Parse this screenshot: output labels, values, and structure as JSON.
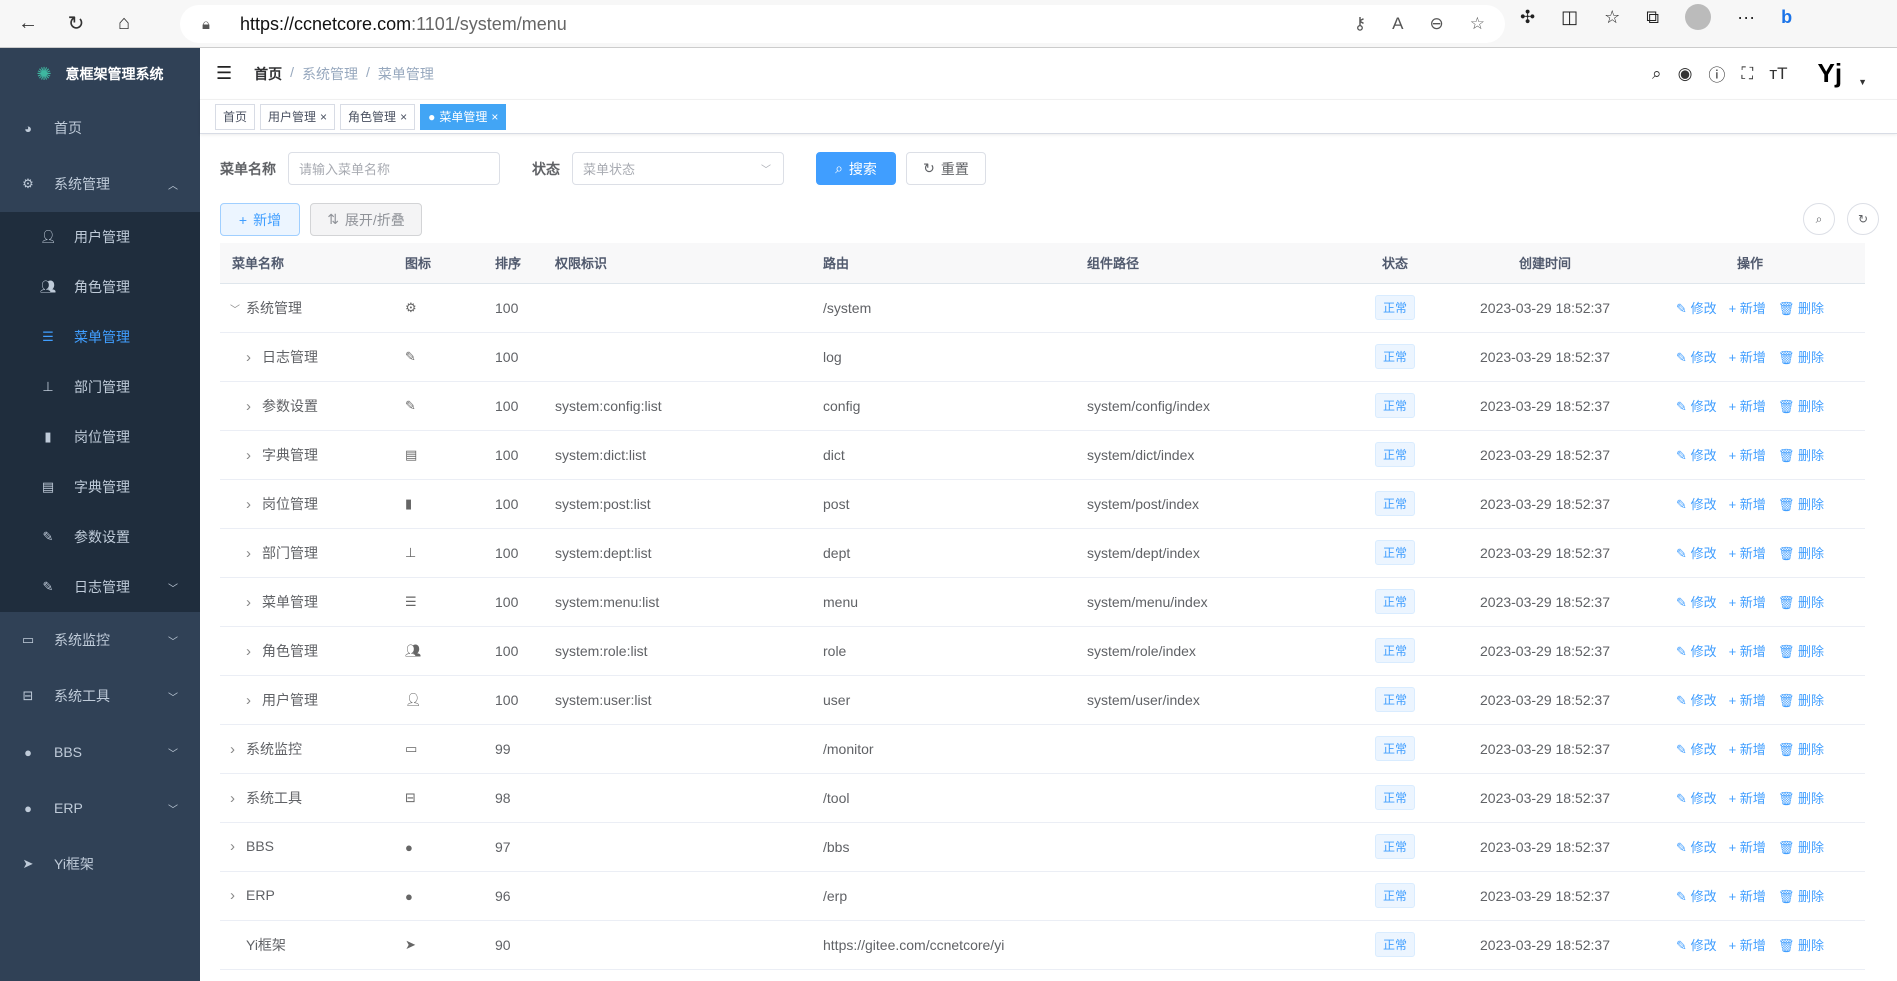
{
  "browser": {
    "url_host": "https://ccnetcore.com",
    "url_rest": ":1101/system/menu"
  },
  "sidebar": {
    "title": "意框架管理系统",
    "items": [
      {
        "label": "首页",
        "icon": "dashboard-icon"
      },
      {
        "label": "系统管理",
        "icon": "gear-icon",
        "expanded": true,
        "children": [
          {
            "label": "用户管理",
            "icon": "user-icon"
          },
          {
            "label": "角色管理",
            "icon": "peoples-icon"
          },
          {
            "label": "菜单管理",
            "icon": "tree-table-icon",
            "active": true
          },
          {
            "label": "部门管理",
            "icon": "tree-icon"
          },
          {
            "label": "岗位管理",
            "icon": "post-icon"
          },
          {
            "label": "字典管理",
            "icon": "dict-icon"
          },
          {
            "label": "参数设置",
            "icon": "edit-icon"
          },
          {
            "label": "日志管理",
            "icon": "log-icon"
          }
        ]
      },
      {
        "label": "系统监控",
        "icon": "monitor-icon"
      },
      {
        "label": "系统工具",
        "icon": "tool-icon"
      },
      {
        "label": "BBS",
        "icon": "globe-icon"
      },
      {
        "label": "ERP",
        "icon": "globe-icon"
      },
      {
        "label": "Yi框架",
        "icon": "send-icon"
      }
    ]
  },
  "breadcrumb": [
    "首页",
    "系统管理",
    "菜单管理"
  ],
  "tags": [
    {
      "label": "首页"
    },
    {
      "label": "用户管理"
    },
    {
      "label": "角色管理"
    },
    {
      "label": "菜单管理",
      "active": true
    }
  ],
  "search": {
    "name_label": "菜单名称",
    "name_placeholder": "请输入菜单名称",
    "status_label": "状态",
    "status_placeholder": "菜单状态",
    "search_btn": "搜索",
    "reset_btn": "重置"
  },
  "toolbar": {
    "add": "新增",
    "expand": "展开/折叠"
  },
  "table": {
    "headers": [
      "菜单名称",
      "图标",
      "排序",
      "权限标识",
      "路由",
      "组件路径",
      "状态",
      "创建时间",
      "操作"
    ],
    "actions": [
      "修改",
      "新增",
      "删除"
    ],
    "rows": [
      {
        "name": "系统管理",
        "level": 0,
        "arrow": "down",
        "icon": "gear-icon",
        "sort": "100",
        "perm": "",
        "route": "/system",
        "component": "",
        "status": "正常",
        "created": "2023-03-29 18:52:37"
      },
      {
        "name": "日志管理",
        "level": 1,
        "arrow": "right",
        "icon": "log-icon",
        "sort": "100",
        "perm": "",
        "route": "log",
        "component": "",
        "status": "正常",
        "created": "2023-03-29 18:52:37"
      },
      {
        "name": "参数设置",
        "level": 1,
        "arrow": "right",
        "icon": "edit-icon",
        "sort": "100",
        "perm": "system:config:list",
        "route": "config",
        "component": "system/config/index",
        "status": "正常",
        "created": "2023-03-29 18:52:37"
      },
      {
        "name": "字典管理",
        "level": 1,
        "arrow": "right",
        "icon": "dict-icon",
        "sort": "100",
        "perm": "system:dict:list",
        "route": "dict",
        "component": "system/dict/index",
        "status": "正常",
        "created": "2023-03-29 18:52:37"
      },
      {
        "name": "岗位管理",
        "level": 1,
        "arrow": "right",
        "icon": "post-icon",
        "sort": "100",
        "perm": "system:post:list",
        "route": "post",
        "component": "system/post/index",
        "status": "正常",
        "created": "2023-03-29 18:52:37"
      },
      {
        "name": "部门管理",
        "level": 1,
        "arrow": "right",
        "icon": "tree-icon",
        "sort": "100",
        "perm": "system:dept:list",
        "route": "dept",
        "component": "system/dept/index",
        "status": "正常",
        "created": "2023-03-29 18:52:37"
      },
      {
        "name": "菜单管理",
        "level": 1,
        "arrow": "right",
        "icon": "tree-table-icon",
        "sort": "100",
        "perm": "system:menu:list",
        "route": "menu",
        "component": "system/menu/index",
        "status": "正常",
        "created": "2023-03-29 18:52:37"
      },
      {
        "name": "角色管理",
        "level": 1,
        "arrow": "right",
        "icon": "peoples-icon",
        "sort": "100",
        "perm": "system:role:list",
        "route": "role",
        "component": "system/role/index",
        "status": "正常",
        "created": "2023-03-29 18:52:37"
      },
      {
        "name": "用户管理",
        "level": 1,
        "arrow": "right",
        "icon": "user-icon",
        "sort": "100",
        "perm": "system:user:list",
        "route": "user",
        "component": "system/user/index",
        "status": "正常",
        "created": "2023-03-29 18:52:37"
      },
      {
        "name": "系统监控",
        "level": 0,
        "arrow": "right",
        "icon": "monitor-icon",
        "sort": "99",
        "perm": "",
        "route": "/monitor",
        "component": "",
        "status": "正常",
        "created": "2023-03-29 18:52:37"
      },
      {
        "name": "系统工具",
        "level": 0,
        "arrow": "right",
        "icon": "tool-icon",
        "sort": "98",
        "perm": "",
        "route": "/tool",
        "component": "",
        "status": "正常",
        "created": "2023-03-29 18:52:37"
      },
      {
        "name": "BBS",
        "level": 0,
        "arrow": "right",
        "icon": "globe-icon",
        "sort": "97",
        "perm": "",
        "route": "/bbs",
        "component": "",
        "status": "正常",
        "created": "2023-03-29 18:52:37"
      },
      {
        "name": "ERP",
        "level": 0,
        "arrow": "right",
        "icon": "globe-icon",
        "sort": "96",
        "perm": "",
        "route": "/erp",
        "component": "",
        "status": "正常",
        "created": "2023-03-29 18:52:37"
      },
      {
        "name": "Yi框架",
        "level": 0,
        "arrow": "",
        "icon": "send-icon",
        "sort": "90",
        "perm": "",
        "route": "https://gitee.com/ccnetcore/yi",
        "component": "",
        "status": "正常",
        "created": "2023-03-29 18:52:37"
      }
    ]
  },
  "colors": {
    "primary": "#409eff",
    "sidebar": "#304156",
    "submenu": "#1f2d3d"
  }
}
